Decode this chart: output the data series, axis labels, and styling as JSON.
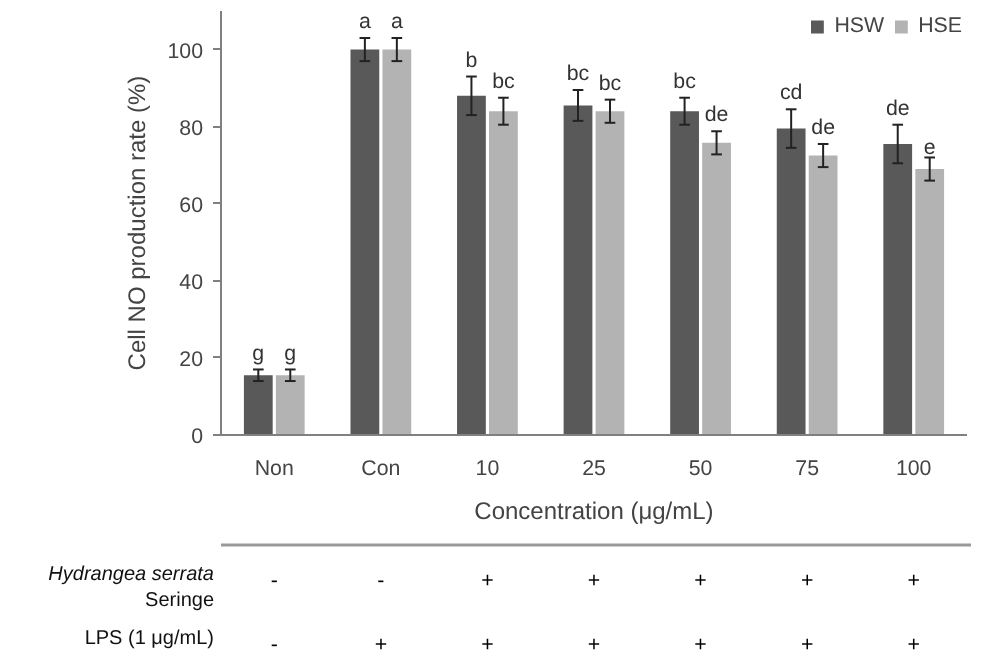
{
  "chart_data": {
    "type": "bar",
    "xlabel": "Concentration (μg/mL)",
    "ylabel": "Cell NO production rate (%)",
    "categories": [
      "Non",
      "Con",
      "10",
      "25",
      "50",
      "75",
      "100"
    ],
    "series": [
      {
        "name": "HSW",
        "color": "#595959",
        "values": [
          15.5,
          100,
          88,
          85.5,
          84,
          79.5,
          75.5
        ],
        "errors": [
          1.5,
          3,
          5,
          4,
          3.5,
          5,
          5
        ],
        "value_labels": [
          "g",
          "a",
          "b",
          "bc",
          "bc",
          "cd",
          "de"
        ]
      },
      {
        "name": "HSE",
        "color": "#b3b3b3",
        "values": [
          15.5,
          100,
          84,
          84,
          75.8,
          72.5,
          69
        ],
        "errors": [
          1.5,
          3,
          3.5,
          3,
          3,
          3,
          3
        ],
        "value_labels": [
          "g",
          "a",
          "bc",
          "bc",
          "de",
          "de",
          "e"
        ]
      }
    ],
    "ylim": [
      0,
      110
    ],
    "yticks": [
      0,
      20,
      40,
      60,
      80,
      100
    ],
    "grid": false,
    "legend": "top right",
    "annotations": [
      "Hydrangea serrata Seringe",
      "-",
      "-",
      "+",
      "+",
      "+",
      "+",
      "+",
      "LPS (1 μg/mL)",
      "-",
      "+",
      "+",
      "+",
      "+",
      "+",
      "+"
    ]
  }
}
